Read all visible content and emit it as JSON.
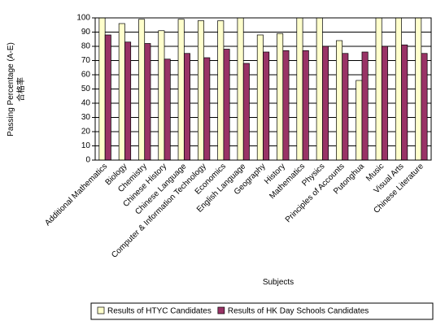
{
  "chart_data": {
    "type": "bar",
    "x_label": "Subjects",
    "y_label": [
      "Passing Percentage (A-E)",
      "合格率"
    ],
    "categories": [
      "Additional Mathematics",
      "Biology",
      "Chemistry",
      "Chinese History",
      "Chinese Language",
      "Computer & Information Technology",
      "Economics",
      "English Language",
      "Geography",
      "History",
      "Mathematics",
      "Physics",
      "Principles of Accounts",
      "Putonghua",
      "Music",
      "Visual Arts",
      "Chinese Literature"
    ],
    "series": [
      {
        "name": "Results of HTYC Candidates",
        "color": "#ffffcc",
        "values": [
          100,
          96,
          99,
          91,
          99,
          98,
          98,
          100,
          88,
          89,
          100,
          100,
          84,
          56,
          100,
          100,
          100
        ]
      },
      {
        "name": "Results of HK Day Schools Candidates",
        "color": "#993366",
        "values": [
          88,
          83,
          82,
          71,
          75,
          72,
          78,
          68,
          76,
          77,
          77,
          80,
          75,
          76,
          80,
          81,
          75
        ]
      }
    ],
    "ylim": [
      0,
      100
    ],
    "yticks": [
      0,
      10,
      20,
      30,
      40,
      50,
      60,
      70,
      80,
      90,
      100
    ],
    "grid": true,
    "legend": "bottom"
  }
}
